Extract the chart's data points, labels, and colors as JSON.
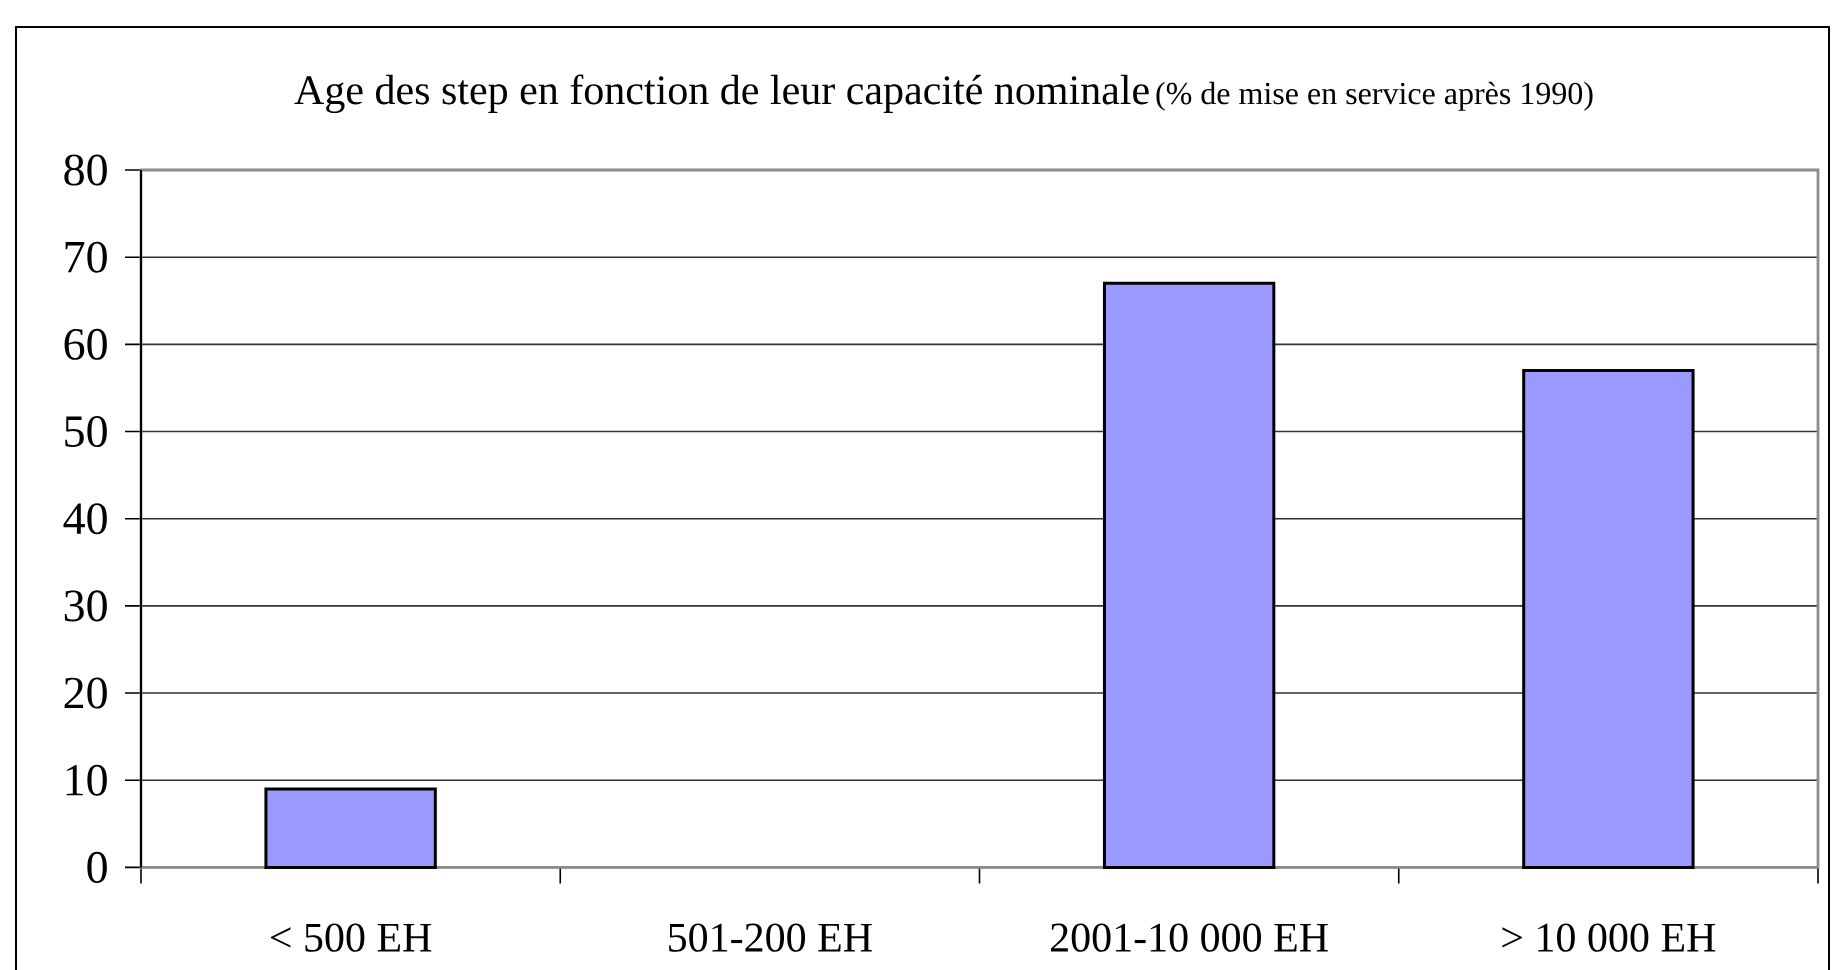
{
  "chart_data": {
    "type": "bar",
    "title": "Age des step en fonction de leur capacité nominale",
    "subtitle": "(% de mise en service après 1990)",
    "categories": [
      "< 500 EH",
      "501-200 EH",
      "2001-10 000 EH",
      "> 10 000 EH"
    ],
    "values": [
      9,
      null,
      67,
      57
    ],
    "color": "#9999ff",
    "ylim": [
      0,
      80
    ],
    "yticks": [
      0,
      10,
      20,
      30,
      40,
      50,
      60,
      70,
      80
    ],
    "grid": "y"
  }
}
